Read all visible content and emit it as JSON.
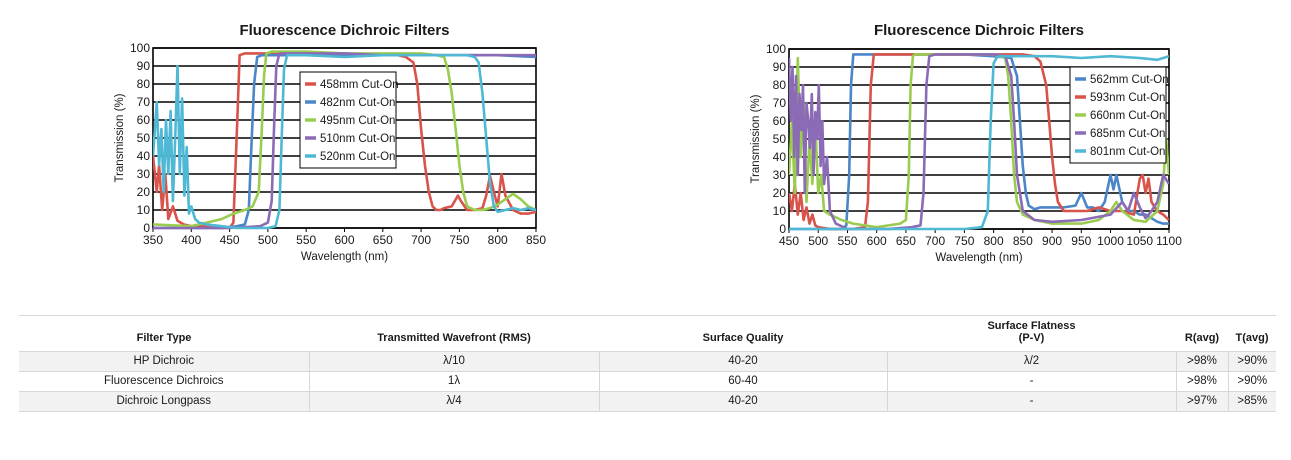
{
  "chart_data": [
    {
      "type": "line",
      "title": "Fluorescence Dichroic Filters",
      "xlabel": "Wavelength (nm)",
      "ylabel": "Transmission (%)",
      "xlim": [
        350,
        850
      ],
      "ylim": [
        0,
        100
      ],
      "xticks": [
        350,
        400,
        450,
        500,
        550,
        600,
        650,
        700,
        750,
        800,
        850
      ],
      "yticks": [
        0,
        10,
        20,
        30,
        40,
        50,
        60,
        70,
        80,
        90,
        100
      ],
      "grid": true,
      "legend_position": "center",
      "series": [
        {
          "name": "458mm Cut-On",
          "color": "#d9534a",
          "x": [
            350,
            355,
            358,
            362,
            366,
            370,
            376,
            382,
            390,
            400,
            415,
            430,
            445,
            450,
            455,
            460,
            463,
            470,
            500,
            550,
            600,
            650,
            670,
            680,
            690,
            695,
            700,
            705,
            710,
            715,
            720,
            725,
            730,
            740,
            748,
            752,
            760,
            770,
            780,
            785,
            790,
            795,
            800,
            805,
            810,
            820,
            830,
            840,
            850
          ],
          "y": [
            40,
            20,
            35,
            10,
            30,
            5,
            12,
            4,
            2,
            1,
            1,
            0,
            0,
            0,
            3,
            60,
            96,
            97,
            97,
            96,
            96,
            96,
            96,
            95,
            92,
            80,
            55,
            35,
            20,
            12,
            10,
            10,
            11,
            12,
            18,
            15,
            10,
            10,
            11,
            18,
            29,
            20,
            12,
            30,
            18,
            10,
            8,
            8,
            9
          ]
        },
        {
          "name": "482nm Cut-On",
          "color": "#4a86c8",
          "x": [
            350,
            400,
            440,
            460,
            470,
            475,
            478,
            482,
            486,
            492,
            500,
            550,
            600,
            650,
            700,
            750,
            800,
            850
          ],
          "y": [
            0,
            0,
            0,
            1,
            2,
            10,
            40,
            80,
            95,
            96,
            96,
            96,
            96,
            96,
            96,
            96,
            96,
            95
          ]
        },
        {
          "name": "495nm Cut-On",
          "color": "#9acd4f",
          "x": [
            350,
            400,
            420,
            440,
            455,
            470,
            480,
            488,
            492,
            495,
            498,
            505,
            550,
            600,
            650,
            700,
            720,
            730,
            735,
            740,
            745,
            750,
            755,
            760,
            770,
            780,
            790,
            800,
            810,
            820,
            830,
            840,
            850
          ],
          "y": [
            2,
            1,
            3,
            5,
            8,
            10,
            12,
            20,
            55,
            85,
            97,
            98,
            98,
            97,
            97,
            97,
            96,
            95,
            88,
            75,
            55,
            35,
            20,
            12,
            10,
            10,
            11,
            13,
            16,
            19,
            16,
            12,
            10
          ]
        },
        {
          "name": "510nm Cut-On",
          "color": "#8b6bb5",
          "x": [
            350,
            400,
            450,
            490,
            500,
            505,
            508,
            511,
            515,
            520,
            550,
            600,
            650,
            700,
            750,
            800,
            850
          ],
          "y": [
            0,
            0,
            0,
            1,
            3,
            15,
            55,
            90,
            97,
            97,
            97,
            97,
            96,
            96,
            96,
            96,
            96
          ]
        },
        {
          "name": "520nm Cut-On",
          "color": "#4fb8d4",
          "x": [
            350,
            355,
            358,
            361,
            364,
            367,
            370,
            373,
            376,
            379,
            382,
            385,
            388,
            391,
            394,
            397,
            400,
            405,
            410,
            420,
            440,
            460,
            480,
            500,
            510,
            515,
            518,
            521,
            525,
            530,
            550,
            600,
            650,
            700,
            750,
            760,
            770,
            775,
            780,
            785,
            790,
            795,
            800,
            810,
            820,
            830,
            840,
            850
          ],
          "y": [
            40,
            70,
            35,
            55,
            20,
            60,
            30,
            65,
            15,
            50,
            90,
            30,
            72,
            18,
            45,
            8,
            12,
            5,
            3,
            2,
            1,
            0,
            0,
            0,
            1,
            10,
            50,
            88,
            96,
            96,
            96,
            95,
            96,
            96,
            96,
            96,
            95,
            92,
            75,
            50,
            25,
            12,
            9,
            10,
            11,
            10,
            11,
            10
          ]
        }
      ]
    },
    {
      "type": "line",
      "title": "Fluorescence Dichroic Filters",
      "xlabel": "Wavelength (nm)",
      "ylabel": "Transmission (%)",
      "xlim": [
        450,
        1100
      ],
      "ylim": [
        0,
        100
      ],
      "xticks": [
        450,
        500,
        550,
        600,
        650,
        700,
        750,
        800,
        850,
        900,
        950,
        1000,
        1050,
        1100
      ],
      "yticks": [
        0,
        10,
        20,
        30,
        40,
        50,
        60,
        70,
        80,
        90,
        100
      ],
      "grid": true,
      "legend_position": "top-right",
      "series": [
        {
          "name": "562mm Cut-On",
          "color": "#4a86c8",
          "x": [
            450,
            500,
            540,
            548,
            553,
            556,
            560,
            570,
            600,
            650,
            700,
            750,
            800,
            830,
            840,
            845,
            850,
            855,
            860,
            870,
            880,
            900,
            920,
            940,
            950,
            960,
            970,
            980,
            990,
            1000,
            1005,
            1010,
            1020,
            1030,
            1040,
            1050,
            1060,
            1070,
            1080,
            1090,
            1100
          ],
          "y": [
            0,
            0,
            0,
            2,
            30,
            80,
            97,
            97,
            97,
            97,
            97,
            97,
            96,
            95,
            85,
            60,
            35,
            20,
            13,
            11,
            12,
            12,
            12,
            13,
            20,
            12,
            12,
            10,
            15,
            30,
            22,
            30,
            15,
            10,
            10,
            8,
            8,
            6,
            4,
            3,
            3
          ]
        },
        {
          "name": "593nm Cut-On",
          "color": "#d9534a",
          "x": [
            450,
            455,
            460,
            465,
            470,
            475,
            480,
            485,
            490,
            495,
            500,
            520,
            560,
            580,
            585,
            590,
            595,
            600,
            650,
            700,
            750,
            800,
            850,
            870,
            880,
            890,
            895,
            900,
            905,
            910,
            920,
            940,
            960,
            980,
            1000,
            1020,
            1040,
            1050,
            1055,
            1060,
            1065,
            1070,
            1080,
            1090,
            1100
          ],
          "y": [
            20,
            10,
            25,
            8,
            20,
            5,
            12,
            3,
            8,
            2,
            1,
            0,
            0,
            1,
            15,
            80,
            97,
            97,
            97,
            97,
            97,
            97,
            97,
            96,
            93,
            80,
            60,
            40,
            25,
            15,
            10,
            10,
            10,
            12,
            10,
            10,
            8,
            28,
            30,
            20,
            28,
            15,
            10,
            8,
            5
          ]
        },
        {
          "name": "660nm Cut-On",
          "color": "#9acd4f",
          "x": [
            450,
            455,
            460,
            465,
            470,
            475,
            480,
            485,
            490,
            495,
            500,
            505,
            510,
            520,
            540,
            560,
            580,
            600,
            620,
            640,
            650,
            655,
            658,
            662,
            665,
            670,
            700,
            750,
            800,
            820,
            825,
            830,
            835,
            840,
            850,
            870,
            900,
            950,
            980,
            1000,
            1010,
            1020,
            1040,
            1060,
            1080,
            1090,
            1095,
            1100
          ],
          "y": [
            30,
            60,
            20,
            95,
            40,
            70,
            15,
            50,
            25,
            60,
            20,
            30,
            10,
            8,
            5,
            3,
            2,
            1,
            2,
            3,
            5,
            30,
            80,
            96,
            97,
            97,
            97,
            97,
            97,
            95,
            85,
            60,
            30,
            15,
            8,
            5,
            3,
            3,
            5,
            10,
            15,
            10,
            5,
            4,
            10,
            25,
            50,
            30
          ]
        },
        {
          "name": "685nm Cut-On",
          "color": "#8b6bb5",
          "x": [
            450,
            453,
            456,
            459,
            462,
            465,
            468,
            471,
            474,
            477,
            480,
            483,
            486,
            489,
            492,
            495,
            498,
            501,
            504,
            507,
            510,
            515,
            520,
            530,
            550,
            580,
            620,
            660,
            675,
            680,
            685,
            690,
            700,
            750,
            800,
            820,
            830,
            835,
            840,
            850,
            870,
            900,
            950,
            1000,
            1020,
            1030,
            1040,
            1050,
            1060,
            1070,
            1080,
            1090,
            1100
          ],
          "y": [
            95,
            60,
            90,
            40,
            85,
            30,
            75,
            55,
            80,
            20,
            70,
            60,
            45,
            75,
            30,
            65,
            50,
            80,
            35,
            60,
            25,
            40,
            10,
            3,
            0,
            0,
            0,
            1,
            2,
            20,
            80,
            96,
            97,
            97,
            97,
            96,
            85,
            60,
            30,
            10,
            5,
            4,
            5,
            8,
            15,
            10,
            20,
            12,
            6,
            10,
            15,
            30,
            25
          ]
        },
        {
          "name": "801nm Cut-On",
          "color": "#4fb8d4",
          "x": [
            450,
            500,
            550,
            600,
            650,
            700,
            750,
            780,
            790,
            795,
            800,
            805,
            810,
            850,
            900,
            950,
            1000,
            1050,
            1080,
            1090,
            1100
          ],
          "y": [
            0,
            0,
            0,
            0,
            0,
            0,
            0,
            1,
            10,
            60,
            92,
            95,
            96,
            96,
            96,
            95,
            96,
            95,
            94,
            95,
            96
          ]
        }
      ]
    }
  ],
  "table": {
    "headers": {
      "filter_type": "Filter Type",
      "wavefront": "Transmitted Wavefront (RMS)",
      "surface_quality": "Surface Quality",
      "flatness_line1": "Surface Flatness",
      "flatness_line2": "(P-V)",
      "ravg": "R(avg)",
      "tavg": "T(avg)"
    },
    "rows": [
      {
        "filter_type": "HP Dichroic",
        "wavefront": "λ/10",
        "surface_quality": "40-20",
        "flatness": "λ/2",
        "ravg": ">98%",
        "tavg": ">90%"
      },
      {
        "filter_type": "Fluorescence Dichroics",
        "wavefront": "1λ",
        "surface_quality": "60-40",
        "flatness": "-",
        "ravg": ">98%",
        "tavg": ">90%"
      },
      {
        "filter_type": "Dichroic Longpass",
        "wavefront": "λ/4",
        "surface_quality": "40-20",
        "flatness": "-",
        "ravg": ">97%",
        "tavg": ">85%"
      }
    ]
  }
}
